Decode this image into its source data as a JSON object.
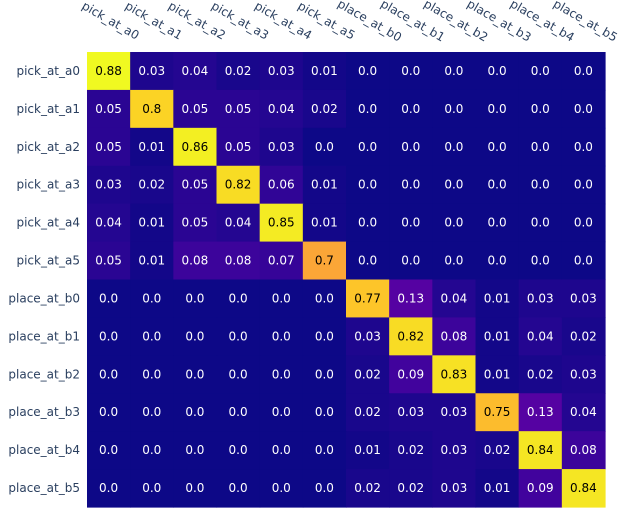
{
  "chart_data": {
    "type": "heatmap",
    "title": "",
    "xlabel": "",
    "ylabel": "",
    "x": [
      "pick_at_a0",
      "pick_at_a1",
      "pick_at_a2",
      "pick_at_a3",
      "pick_at_a4",
      "pick_at_a5",
      "place_at_b0",
      "place_at_b1",
      "place_at_b2",
      "place_at_b3",
      "place_at_b4",
      "place_at_b5"
    ],
    "y": [
      "pick_at_a0",
      "pick_at_a1",
      "pick_at_a2",
      "pick_at_a3",
      "pick_at_a4",
      "pick_at_a5",
      "place_at_b0",
      "place_at_b1",
      "place_at_b2",
      "place_at_b3",
      "place_at_b4",
      "place_at_b5"
    ],
    "z": [
      [
        0.88,
        0.03,
        0.04,
        0.02,
        0.03,
        0.01,
        0.0,
        0.0,
        0.0,
        0.0,
        0.0,
        0.0
      ],
      [
        0.05,
        0.8,
        0.05,
        0.05,
        0.04,
        0.02,
        0.0,
        0.0,
        0.0,
        0.0,
        0.0,
        0.0
      ],
      [
        0.05,
        0.01,
        0.86,
        0.05,
        0.03,
        0.0,
        0.0,
        0.0,
        0.0,
        0.0,
        0.0,
        0.0
      ],
      [
        0.03,
        0.02,
        0.05,
        0.82,
        0.06,
        0.01,
        0.0,
        0.0,
        0.0,
        0.0,
        0.0,
        0.0
      ],
      [
        0.04,
        0.01,
        0.05,
        0.04,
        0.85,
        0.01,
        0.0,
        0.0,
        0.0,
        0.0,
        0.0,
        0.0
      ],
      [
        0.05,
        0.01,
        0.08,
        0.08,
        0.07,
        0.7,
        0.0,
        0.0,
        0.0,
        0.0,
        0.0,
        0.0
      ],
      [
        0.0,
        0.0,
        0.0,
        0.0,
        0.0,
        0.0,
        0.77,
        0.13,
        0.04,
        0.01,
        0.03,
        0.03
      ],
      [
        0.0,
        0.0,
        0.0,
        0.0,
        0.0,
        0.0,
        0.03,
        0.82,
        0.08,
        0.01,
        0.04,
        0.02
      ],
      [
        0.0,
        0.0,
        0.0,
        0.0,
        0.0,
        0.0,
        0.02,
        0.09,
        0.83,
        0.01,
        0.02,
        0.03
      ],
      [
        0.0,
        0.0,
        0.0,
        0.0,
        0.0,
        0.0,
        0.02,
        0.03,
        0.03,
        0.75,
        0.13,
        0.04
      ],
      [
        0.0,
        0.0,
        0.0,
        0.0,
        0.0,
        0.0,
        0.01,
        0.02,
        0.03,
        0.02,
        0.84,
        0.08
      ],
      [
        0.0,
        0.0,
        0.0,
        0.0,
        0.0,
        0.0,
        0.02,
        0.02,
        0.03,
        0.01,
        0.09,
        0.84
      ]
    ],
    "z_labels": [
      [
        "0.88",
        "0.03",
        "0.04",
        "0.02",
        "0.03",
        "0.01",
        "0.0",
        "0.0",
        "0.0",
        "0.0",
        "0.0",
        "0.0"
      ],
      [
        "0.05",
        "0.8",
        "0.05",
        "0.05",
        "0.04",
        "0.02",
        "0.0",
        "0.0",
        "0.0",
        "0.0",
        "0.0",
        "0.0"
      ],
      [
        "0.05",
        "0.01",
        "0.86",
        "0.05",
        "0.03",
        "0.0",
        "0.0",
        "0.0",
        "0.0",
        "0.0",
        "0.0",
        "0.0"
      ],
      [
        "0.03",
        "0.02",
        "0.05",
        "0.82",
        "0.06",
        "0.01",
        "0.0",
        "0.0",
        "0.0",
        "0.0",
        "0.0",
        "0.0"
      ],
      [
        "0.04",
        "0.01",
        "0.05",
        "0.04",
        "0.85",
        "0.01",
        "0.0",
        "0.0",
        "0.0",
        "0.0",
        "0.0",
        "0.0"
      ],
      [
        "0.05",
        "0.01",
        "0.08",
        "0.08",
        "0.07",
        "0.7",
        "0.0",
        "0.0",
        "0.0",
        "0.0",
        "0.0",
        "0.0"
      ],
      [
        "0.0",
        "0.0",
        "0.0",
        "0.0",
        "0.0",
        "0.0",
        "0.77",
        "0.13",
        "0.04",
        "0.01",
        "0.03",
        "0.03"
      ],
      [
        "0.0",
        "0.0",
        "0.0",
        "0.0",
        "0.0",
        "0.0",
        "0.03",
        "0.82",
        "0.08",
        "0.01",
        "0.04",
        "0.02"
      ],
      [
        "0.0",
        "0.0",
        "0.0",
        "0.0",
        "0.0",
        "0.0",
        "0.02",
        "0.09",
        "0.83",
        "0.01",
        "0.02",
        "0.03"
      ],
      [
        "0.0",
        "0.0",
        "0.0",
        "0.0",
        "0.0",
        "0.0",
        "0.02",
        "0.03",
        "0.03",
        "0.75",
        "0.13",
        "0.04"
      ],
      [
        "0.0",
        "0.0",
        "0.0",
        "0.0",
        "0.0",
        "0.0",
        "0.01",
        "0.02",
        "0.03",
        "0.02",
        "0.84",
        "0.08"
      ],
      [
        "0.0",
        "0.0",
        "0.0",
        "0.0",
        "0.0",
        "0.0",
        "0.02",
        "0.02",
        "0.03",
        "0.01",
        "0.09",
        "0.84"
      ]
    ],
    "x_axis_side": "top",
    "zlim": [
      0,
      0.88
    ],
    "colorscale": "plasma",
    "colorbar": false,
    "grid": false,
    "colors": {
      "plasma": [
        "#0d0887",
        "#46039f",
        "#7201a8",
        "#9c179e",
        "#bd3786",
        "#d8576b",
        "#ed7953",
        "#fb9f3a",
        "#fdca26",
        "#f0f921"
      ],
      "text_dark_bg": "#ffffff",
      "text_light_bg": "#000000",
      "tick_text": "#2a3f5f"
    }
  }
}
